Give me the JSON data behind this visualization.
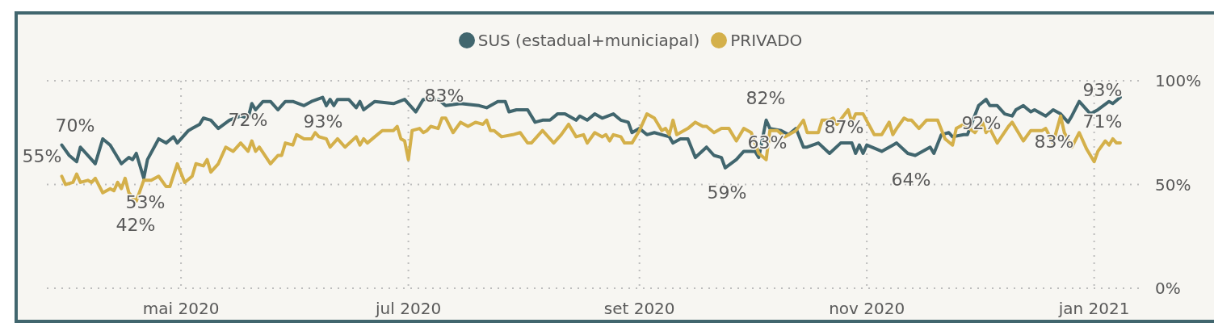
{
  "chart_data": {
    "type": "line",
    "legend": "top",
    "grid": true,
    "line_style": "solid",
    "marker": "none",
    "xlim": [
      "2020-03-26",
      "2021-01-13"
    ],
    "xticks": [
      {
        "value": "2020-05-01",
        "label": "mai 2020"
      },
      {
        "value": "2020-07-01",
        "label": "jul 2020"
      },
      {
        "value": "2020-09-01",
        "label": "set 2020"
      },
      {
        "value": "2020-11-01",
        "label": "nov 2020"
      },
      {
        "value": "2021-01-01",
        "label": "jan 2021"
      }
    ],
    "ylim": [
      0,
      100
    ],
    "yticks": [
      {
        "value": 0,
        "label": "0%"
      },
      {
        "value": 50,
        "label": "50%"
      },
      {
        "value": 100,
        "label": "100%"
      }
    ],
    "series": [
      {
        "name": "SUS (estadual+municiapal)",
        "color": "#41666e",
        "x": [
          "2020-03-30",
          "2020-04-01",
          "2020-04-03",
          "2020-04-04",
          "2020-04-07",
          "2020-04-08",
          "2020-04-10",
          "2020-04-12",
          "2020-04-15",
          "2020-04-17",
          "2020-04-18",
          "2020-04-19",
          "2020-04-21",
          "2020-04-22",
          "2020-04-25",
          "2020-04-27",
          "2020-04-29",
          "2020-04-30",
          "2020-05-03",
          "2020-05-04",
          "2020-05-06",
          "2020-05-07",
          "2020-05-09",
          "2020-05-11",
          "2020-05-14",
          "2020-05-17",
          "2020-05-19",
          "2020-05-20",
          "2020-05-21",
          "2020-05-23",
          "2020-05-25",
          "2020-05-27",
          "2020-05-29",
          "2020-05-31",
          "2020-06-03",
          "2020-06-05",
          "2020-06-08",
          "2020-06-09",
          "2020-06-10",
          "2020-06-11",
          "2020-06-12",
          "2020-06-15",
          "2020-06-17",
          "2020-06-18",
          "2020-06-19",
          "2020-06-22",
          "2020-06-27",
          "2020-06-30",
          "2020-07-03",
          "2020-07-05",
          "2020-07-09",
          "2020-07-11",
          "2020-07-15",
          "2020-07-20",
          "2020-07-22",
          "2020-07-25",
          "2020-07-27",
          "2020-07-28",
          "2020-07-30",
          "2020-08-02",
          "2020-08-04",
          "2020-08-06",
          "2020-08-08",
          "2020-08-10",
          "2020-08-12",
          "2020-08-15",
          "2020-08-16",
          "2020-08-18",
          "2020-08-20",
          "2020-08-22",
          "2020-08-25",
          "2020-08-27",
          "2020-08-29",
          "2020-08-30",
          "2020-09-01",
          "2020-09-03",
          "2020-09-05",
          "2020-09-07",
          "2020-09-09",
          "2020-09-10",
          "2020-09-12",
          "2020-09-14",
          "2020-09-16",
          "2020-09-19",
          "2020-09-21",
          "2020-09-23",
          "2020-09-24",
          "2020-09-27",
          "2020-09-29",
          "2020-10-02",
          "2020-10-03",
          "2020-10-05",
          "2020-10-06",
          "2020-10-09",
          "2020-10-11",
          "2020-10-13",
          "2020-10-15",
          "2020-10-16",
          "2020-10-19",
          "2020-10-22",
          "2020-10-25",
          "2020-10-28",
          "2020-10-29",
          "2020-10-30",
          "2020-10-31",
          "2020-11-01",
          "2020-11-05",
          "2020-11-08",
          "2020-11-09",
          "2020-11-12",
          "2020-11-14",
          "2020-11-18",
          "2020-11-19",
          "2020-11-21",
          "2020-11-23",
          "2020-11-24",
          "2020-11-27",
          "2020-11-28",
          "2020-12-01",
          "2020-12-03",
          "2020-12-04",
          "2020-12-06",
          "2020-12-08",
          "2020-12-10",
          "2020-12-11",
          "2020-12-13",
          "2020-12-15",
          "2020-12-16",
          "2020-12-19",
          "2020-12-21",
          "2020-12-23",
          "2020-12-25",
          "2020-12-26",
          "2020-12-28",
          "2020-12-31",
          "2021-01-02",
          "2021-01-05",
          "2021-01-06",
          "2021-01-08"
        ],
        "values": [
          69,
          64,
          61,
          68,
          62,
          60,
          72,
          69,
          60,
          63,
          62,
          65,
          53,
          62,
          72,
          70,
          73,
          70,
          76,
          77,
          79,
          82,
          81,
          77,
          81,
          83,
          82,
          89,
          86,
          90,
          90,
          86,
          90,
          90,
          88,
          90,
          92,
          88,
          91,
          88,
          91,
          91,
          87,
          90,
          86,
          90,
          89,
          91,
          85,
          91,
          91,
          88,
          89,
          88,
          87,
          90,
          90,
          85,
          86,
          86,
          80,
          81,
          81,
          84,
          84,
          81,
          83,
          81,
          84,
          82,
          84,
          81,
          80,
          75,
          77,
          74,
          75,
          74,
          73,
          70,
          72,
          72,
          63,
          68,
          64,
          63,
          58,
          62,
          66,
          66,
          63,
          81,
          77,
          76,
          74,
          77,
          68,
          68,
          70,
          65,
          70,
          70,
          65,
          69,
          65,
          69,
          66,
          69,
          70,
          65,
          64,
          68,
          65,
          74,
          75,
          73,
          74,
          74,
          88,
          91,
          88,
          88,
          84,
          83,
          86,
          88,
          85,
          86,
          83,
          86,
          84,
          80,
          83,
          90,
          84,
          86,
          90,
          89,
          92
        ]
      },
      {
        "name": "PRIVADO",
        "color": "#d4b04a",
        "x": [
          "2020-03-30",
          "2020-03-31",
          "2020-04-02",
          "2020-04-03",
          "2020-04-04",
          "2020-04-06",
          "2020-04-07",
          "2020-04-08",
          "2020-04-10",
          "2020-04-12",
          "2020-04-13",
          "2020-04-14",
          "2020-04-15",
          "2020-04-16",
          "2020-04-17",
          "2020-04-19",
          "2020-04-21",
          "2020-04-23",
          "2020-04-25",
          "2020-04-27",
          "2020-04-28",
          "2020-04-30",
          "2020-05-02",
          "2020-05-04",
          "2020-05-05",
          "2020-05-07",
          "2020-05-08",
          "2020-05-09",
          "2020-05-11",
          "2020-05-13",
          "2020-05-15",
          "2020-05-17",
          "2020-05-19",
          "2020-05-20",
          "2020-05-21",
          "2020-05-22",
          "2020-05-25",
          "2020-05-27",
          "2020-05-28",
          "2020-05-29",
          "2020-05-31",
          "2020-06-01",
          "2020-06-03",
          "2020-06-05",
          "2020-06-06",
          "2020-06-07",
          "2020-06-09",
          "2020-06-10",
          "2020-06-12",
          "2020-06-14",
          "2020-06-17",
          "2020-06-18",
          "2020-06-19",
          "2020-06-20",
          "2020-06-22",
          "2020-06-24",
          "2020-06-27",
          "2020-06-28",
          "2020-06-29",
          "2020-06-30",
          "2020-07-01",
          "2020-07-02",
          "2020-07-04",
          "2020-07-05",
          "2020-07-06",
          "2020-07-07",
          "2020-07-09",
          "2020-07-10",
          "2020-07-11",
          "2020-07-13",
          "2020-07-15",
          "2020-07-17",
          "2020-07-19",
          "2020-07-21",
          "2020-07-22",
          "2020-07-23",
          "2020-07-24",
          "2020-07-26",
          "2020-07-29",
          "2020-07-31",
          "2020-08-02",
          "2020-08-03",
          "2020-08-06",
          "2020-08-09",
          "2020-08-11",
          "2020-08-13",
          "2020-08-15",
          "2020-08-17",
          "2020-08-18",
          "2020-08-20",
          "2020-08-22",
          "2020-08-23",
          "2020-08-24",
          "2020-08-25",
          "2020-08-27",
          "2020-08-28",
          "2020-08-30",
          "2020-09-01",
          "2020-09-03",
          "2020-09-05",
          "2020-09-07",
          "2020-09-08",
          "2020-09-09",
          "2020-09-10",
          "2020-09-11",
          "2020-09-14",
          "2020-09-16",
          "2020-09-18",
          "2020-09-19",
          "2020-09-21",
          "2020-09-23",
          "2020-09-25",
          "2020-09-27",
          "2020-09-29",
          "2020-10-01",
          "2020-10-03",
          "2020-10-05",
          "2020-10-06",
          "2020-10-08",
          "2020-10-10",
          "2020-10-13",
          "2020-10-15",
          "2020-10-16",
          "2020-10-19",
          "2020-10-20",
          "2020-10-22",
          "2020-10-23",
          "2020-10-24",
          "2020-10-27",
          "2020-10-28",
          "2020-10-29",
          "2020-10-31",
          "2020-11-03",
          "2020-11-05",
          "2020-11-07",
          "2020-11-08",
          "2020-11-09",
          "2020-11-11",
          "2020-11-12",
          "2020-11-13",
          "2020-11-15",
          "2020-11-17",
          "2020-11-20",
          "2020-11-22",
          "2020-11-24",
          "2020-11-25",
          "2020-11-27",
          "2020-11-30",
          "2020-12-02",
          "2020-12-03",
          "2020-12-04",
          "2020-12-06",
          "2020-12-09",
          "2020-12-10",
          "2020-12-13",
          "2020-12-15",
          "2020-12-18",
          "2020-12-19",
          "2020-12-21",
          "2020-12-23",
          "2020-12-24",
          "2020-12-26",
          "2020-12-28",
          "2020-12-30",
          "2021-01-01",
          "2021-01-02",
          "2021-01-04",
          "2021-01-05",
          "2021-01-06",
          "2021-01-07",
          "2021-01-08"
        ],
        "values": [
          54,
          50,
          51,
          55,
          51,
          52,
          51,
          53,
          46,
          48,
          47,
          51,
          48,
          53,
          46,
          42,
          52,
          52,
          54,
          49,
          49,
          60,
          51,
          54,
          60,
          59,
          62,
          56,
          60,
          68,
          66,
          70,
          66,
          71,
          66,
          68,
          60,
          64,
          64,
          70,
          69,
          74,
          72,
          72,
          75,
          73,
          72,
          68,
          72,
          68,
          73,
          69,
          72,
          70,
          73,
          76,
          76,
          78,
          72,
          71,
          62,
          76,
          77,
          75,
          76,
          78,
          77,
          82,
          82,
          75,
          80,
          78,
          80,
          79,
          81,
          76,
          76,
          73,
          74,
          75,
          70,
          70,
          76,
          70,
          74,
          79,
          73,
          74,
          70,
          75,
          73,
          74,
          71,
          74,
          73,
          70,
          70,
          76,
          84,
          82,
          76,
          77,
          74,
          81,
          74,
          77,
          80,
          78,
          78,
          75,
          77,
          77,
          71,
          77,
          75,
          65,
          62,
          76,
          76,
          73,
          76,
          81,
          75,
          75,
          81,
          81,
          82,
          79,
          86,
          80,
          84,
          84,
          74,
          74,
          80,
          74,
          77,
          82,
          81,
          81,
          77,
          81,
          81,
          72,
          69,
          77,
          79,
          75,
          80,
          75,
          77,
          70,
          78,
          80,
          71,
          76,
          76,
          77,
          70,
          83,
          75,
          68,
          75,
          67,
          61,
          66,
          71,
          69,
          72,
          70,
          70
        ]
      }
    ],
    "annotations": [
      "70%",
      "55%",
      "53%",
      "42%",
      "72%",
      "93%",
      "83%",
      "82%",
      "63%",
      "59%",
      "87%",
      "64%",
      "92%",
      "83%",
      "93%",
      "71%"
    ]
  }
}
